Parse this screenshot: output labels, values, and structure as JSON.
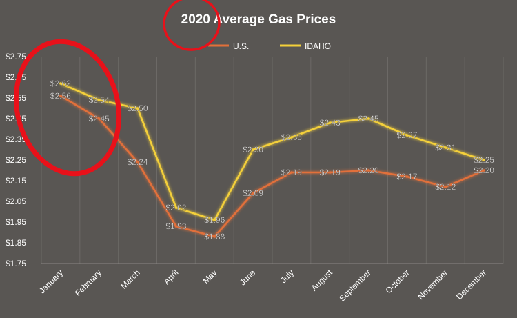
{
  "chart_data": {
    "type": "line",
    "title": "2020 Average Gas Prices",
    "xlabel": "",
    "ylabel": "",
    "ylim": [
      1.75,
      2.75
    ],
    "yticks": [
      1.75,
      1.85,
      1.95,
      2.05,
      2.15,
      2.25,
      2.35,
      2.45,
      2.55,
      2.65,
      2.75
    ],
    "ytick_labels": [
      "$1.75",
      "$1.85",
      "$1.95",
      "$2.05",
      "$2.15",
      "$2.25",
      "$2.35",
      "$2.45",
      "$2.55",
      "$2.65",
      "$2.75"
    ],
    "grid": "vertical",
    "legend": "top",
    "categories": [
      "January",
      "February",
      "March",
      "April",
      "May",
      "June",
      "July",
      "August",
      "September",
      "October",
      "November",
      "December"
    ],
    "series": [
      {
        "name": "U.S.",
        "color": "#e2703a",
        "values": [
          2.56,
          2.45,
          2.24,
          1.93,
          1.88,
          2.09,
          2.19,
          2.19,
          2.2,
          2.17,
          2.12,
          2.2
        ],
        "labels": [
          "$2.56",
          "$2.45",
          "$2.24",
          "$1.93",
          "$1.88",
          "$2.09",
          "$2.19",
          "$2.19",
          "$2.20",
          "$2.17",
          "$2.12",
          "$2.20"
        ]
      },
      {
        "name": "IDAHO",
        "color": "#f4d03a",
        "values": [
          2.62,
          2.54,
          2.5,
          2.02,
          1.96,
          2.3,
          2.36,
          2.43,
          2.45,
          2.37,
          2.31,
          2.25
        ],
        "labels": [
          "$2.62",
          "$2.54",
          "$2.50",
          "$2.02",
          "$1.96",
          "$2.30",
          "$2.36",
          "$2.43",
          "$2.45",
          "$2.37",
          "$2.31",
          "$2.25"
        ]
      }
    ],
    "annotations": [
      {
        "type": "ellipse",
        "color": "#e8111a",
        "target": "title"
      },
      {
        "type": "ellipse",
        "color": "#e8111a",
        "target": "January-February"
      }
    ]
  }
}
